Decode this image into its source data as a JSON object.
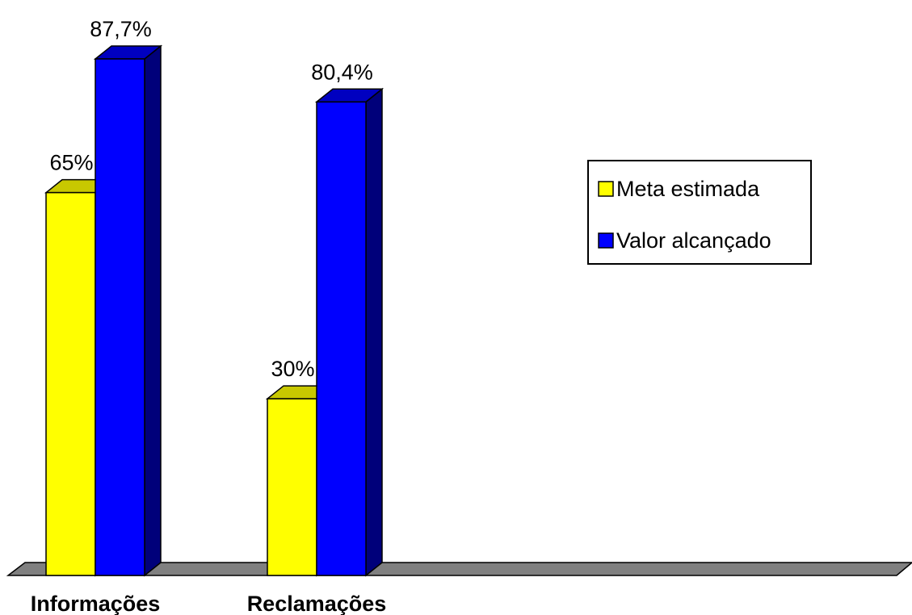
{
  "chart_data": {
    "type": "bar",
    "categories": [
      "Informações",
      "Reclamações"
    ],
    "series": [
      {
        "name": "Meta estimada",
        "values": [
          65,
          30
        ],
        "labels": [
          "65%",
          "30%"
        ],
        "color": "#FFFF00",
        "top_color": "#C8C800",
        "side_color": "#B3B300"
      },
      {
        "name": "Valor alcançado",
        "values": [
          87.7,
          80.4
        ],
        "labels": [
          "87,7%",
          "80,4%"
        ],
        "color": "#0000FF",
        "top_color": "#0000C0",
        "side_color": "#00007A"
      }
    ],
    "ylim": [
      0,
      100
    ],
    "floor_color": "#808080",
    "legend_position": "right",
    "grid": false,
    "title": "",
    "xlabel": "",
    "ylabel": ""
  }
}
